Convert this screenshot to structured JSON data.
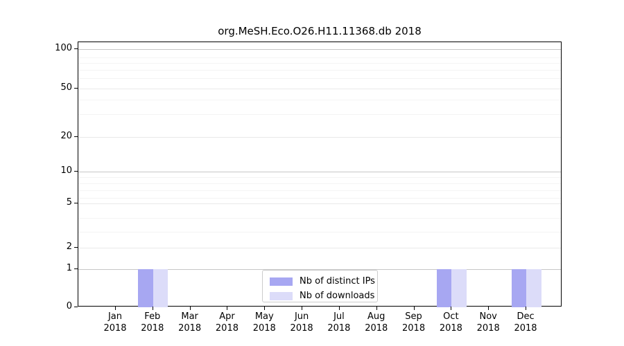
{
  "page_title": "org.MeSH.Eco.O26.H11.11368.db 2018",
  "chart_data": {
    "type": "bar",
    "title": "org.MeSH.Eco.O26.H11.11368.db 2018",
    "categories": [
      "Jan 2018",
      "Feb 2018",
      "Mar 2018",
      "Apr 2018",
      "May 2018",
      "Jun 2018",
      "Jul 2018",
      "Aug 2018",
      "Sep 2018",
      "Oct 2018",
      "Nov 2018",
      "Dec 2018"
    ],
    "x_tick_labels": [
      {
        "month": "Jan",
        "year": "2018"
      },
      {
        "month": "Feb",
        "year": "2018"
      },
      {
        "month": "Mar",
        "year": "2018"
      },
      {
        "month": "Apr",
        "year": "2018"
      },
      {
        "month": "May",
        "year": "2018"
      },
      {
        "month": "Jun",
        "year": "2018"
      },
      {
        "month": "Jul",
        "year": "2018"
      },
      {
        "month": "Aug",
        "year": "2018"
      },
      {
        "month": "Sep",
        "year": "2018"
      },
      {
        "month": "Oct",
        "year": "2018"
      },
      {
        "month": "Nov",
        "year": "2018"
      },
      {
        "month": "Dec",
        "year": "2018"
      }
    ],
    "series": [
      {
        "name": "Nb of distinct IPs",
        "color": "#a7a7f2",
        "values": [
          0,
          1,
          0,
          0,
          0,
          0,
          0,
          0,
          0,
          1,
          0,
          1
        ]
      },
      {
        "name": "Nb of downloads",
        "color": "#dcdcf9",
        "values": [
          0,
          1,
          0,
          0,
          0,
          0,
          0,
          0,
          0,
          1,
          0,
          1
        ]
      }
    ],
    "yscale": "symlog",
    "y_ticks": [
      {
        "value": 100,
        "label": "100"
      },
      {
        "value": 50,
        "label": "50"
      },
      {
        "value": 20,
        "label": "20"
      },
      {
        "value": 10,
        "label": "10"
      },
      {
        "value": 5,
        "label": "5"
      },
      {
        "value": 2,
        "label": "2"
      },
      {
        "value": 1,
        "label": "1"
      },
      {
        "value": 0,
        "label": "0"
      }
    ],
    "ylim": [
      0,
      140
    ],
    "grid": true,
    "legend_position": "lower center"
  },
  "legend": {
    "entries": [
      {
        "label": "Nb of distinct IPs",
        "color": "#a7a7f2"
      },
      {
        "label": "Nb of downloads",
        "color": "#dcdcf9"
      }
    ]
  },
  "colors": {
    "grid_major": "#c6c6c6",
    "grid_mid": "#e9e9e9",
    "grid_minor": "#f4f4f4",
    "axis": "#000000",
    "legend_border": "#cccccc"
  }
}
